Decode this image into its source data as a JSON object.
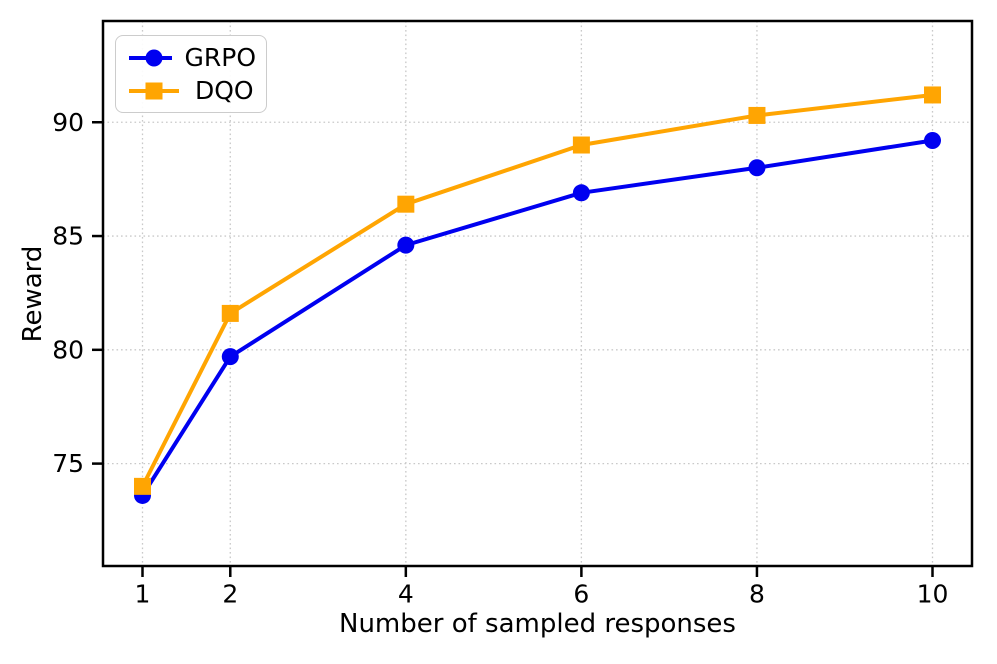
{
  "figure": {
    "background": "#ffffff",
    "frame_color": "#000000",
    "tick_label_color": "#000000"
  },
  "chart_data": {
    "type": "line",
    "title": "",
    "xlabel": "Number of sampled responses",
    "ylabel": "Reward",
    "x": [
      1,
      2,
      4,
      6,
      8,
      10
    ],
    "series": [
      {
        "name": "GRPO",
        "color": "#0000f0",
        "marker": "circle",
        "values": [
          73.6,
          79.7,
          84.6,
          86.9,
          88.0,
          89.2
        ]
      },
      {
        "name": "DQO",
        "color": "#ffa502",
        "marker": "square",
        "values": [
          74.0,
          81.6,
          86.4,
          89.0,
          90.3,
          91.2
        ]
      }
    ],
    "xticks": [
      "1",
      "2",
      "4",
      "6",
      "8",
      "10"
    ],
    "xtick_values": [
      1,
      2,
      4,
      6,
      8,
      10
    ],
    "yticks": [
      "75",
      "80",
      "85",
      "90"
    ],
    "ytick_values": [
      75,
      80,
      85,
      90
    ],
    "xlim": [
      0.55,
      10.45
    ],
    "ylim": [
      70.5,
      94.45
    ],
    "grid": {
      "visible": true,
      "style": "dotted",
      "color": "#c9c9c9"
    },
    "legend_position": "upper-left"
  }
}
